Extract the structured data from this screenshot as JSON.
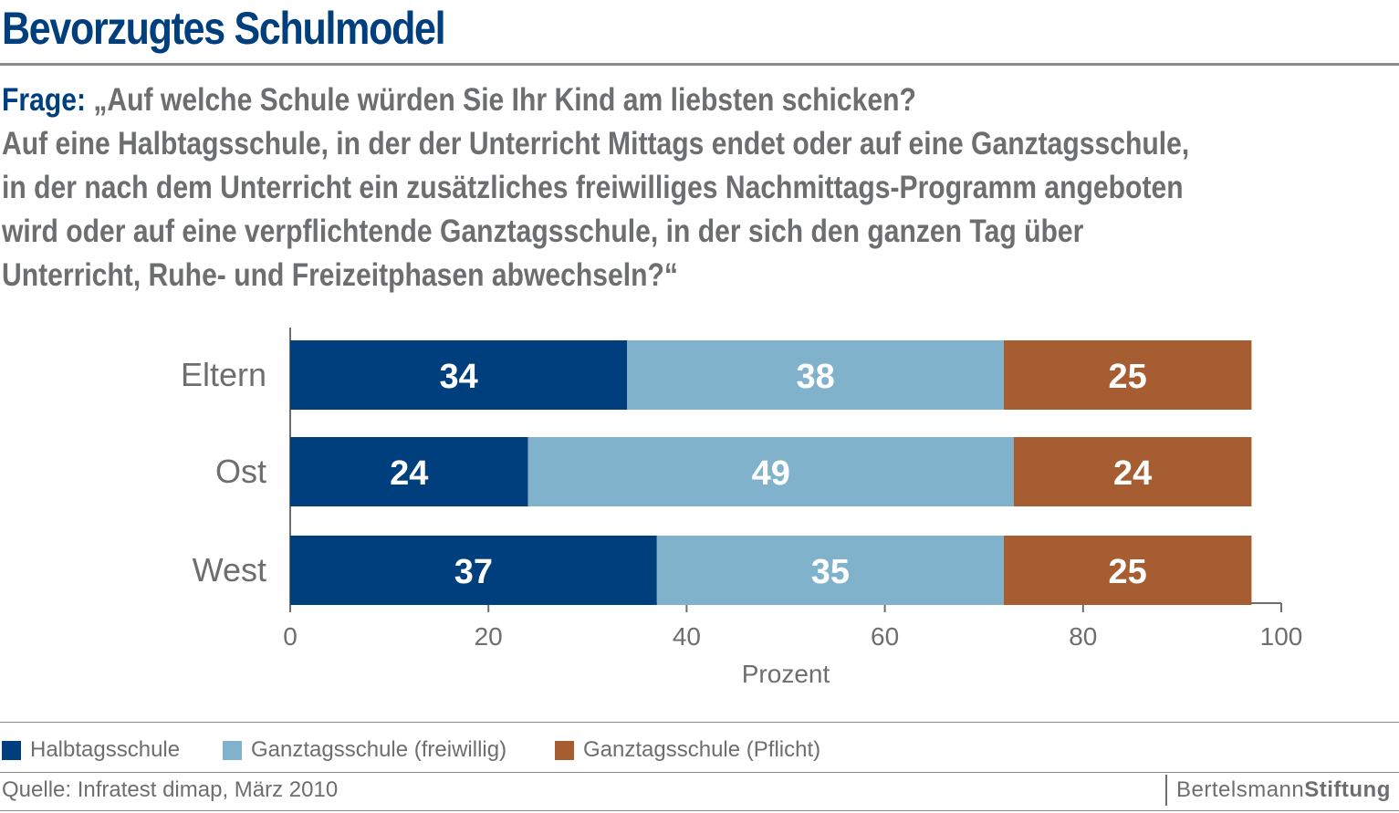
{
  "header": {
    "title": "Bevorzugtes Schulmodel",
    "question_label": "Frage:",
    "question_lines": [
      "„Auf welche Schule würden Sie Ihr Kind am liebsten schicken?",
      "Auf eine Halbtagsschule, in der der Unterricht Mittags endet oder auf eine Ganztagsschule,",
      "in der nach dem Unterricht ein zusätzliches freiwilliges Nachmittags-Programm angeboten",
      "wird oder auf eine verpflichtende Ganztagsschule, in der sich den ganzen Tag über",
      "Unterricht, Ruhe- und Freizeitphasen abwechseln?“"
    ]
  },
  "chart_data": {
    "type": "bar",
    "orientation": "horizontal",
    "stacked": true,
    "categories": [
      "Eltern",
      "Ost",
      "West"
    ],
    "series": [
      {
        "name": "Halbtagsschule",
        "values": [
          34,
          24,
          37
        ],
        "color": "#003f7d",
        "label_color": "#ffffff"
      },
      {
        "name": "Ganztagsschule (freiwillig)",
        "values": [
          38,
          49,
          35
        ],
        "color": "#80b2cc",
        "label_color": "#ffffff"
      },
      {
        "name": "Ganztagsschule (Pflicht)",
        "values": [
          25,
          24,
          25
        ],
        "color": "#a55d31",
        "label_color": "#ffffff"
      }
    ],
    "xlabel": "Prozent",
    "xlim": [
      0,
      100
    ],
    "xticks": [
      0,
      20,
      40,
      60,
      80,
      100
    ],
    "legend_position": "bottom",
    "grid": false
  },
  "footer": {
    "source": "Quelle: Infratest dimap, März 2010",
    "brand_plain": "Bertelsmann",
    "brand_strong": "Stiftung"
  }
}
